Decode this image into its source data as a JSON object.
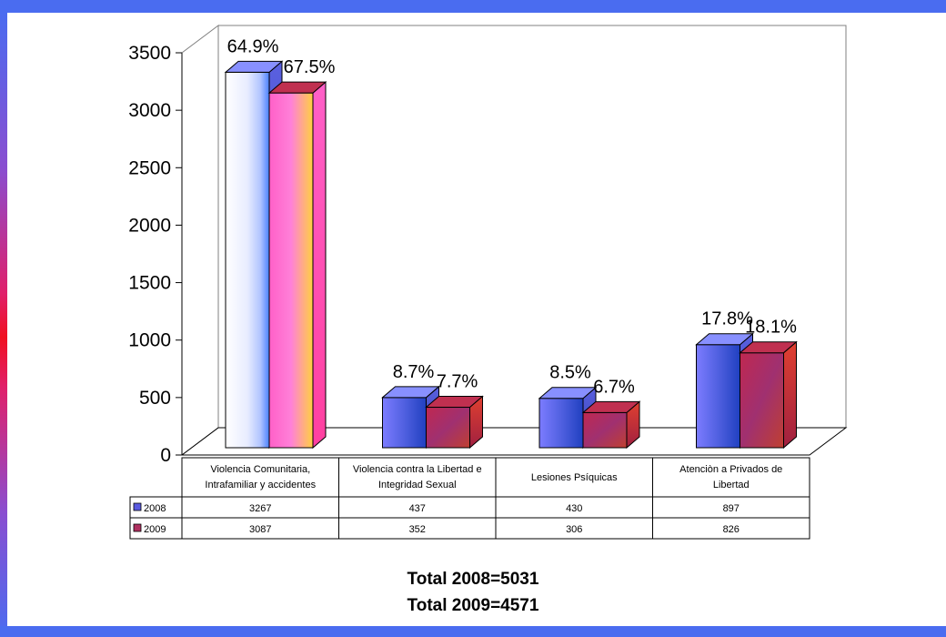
{
  "chart_data": {
    "type": "bar",
    "categories": [
      [
        "Violencia Comunitaria,",
        "Intrafamiliar y accidentes"
      ],
      [
        "Violencia contra la Libertad e",
        "Integridad Sexual"
      ],
      [
        "Lesiones Psíquicas"
      ],
      [
        "Atenciòn a Privados de",
        "Libertad"
      ]
    ],
    "series": [
      {
        "name": "2008",
        "values": [
          3267,
          437,
          430,
          897
        ],
        "value_labels": [
          "3267",
          "437",
          "430",
          "897"
        ],
        "pct_labels": [
          "64.9%",
          "8.7%",
          "8.5%",
          "17.8%"
        ],
        "color": "#5a5ae0"
      },
      {
        "name": "2009",
        "values": [
          3087,
          352,
          306,
          826
        ],
        "value_labels": [
          "3087",
          "352",
          "306",
          "826"
        ],
        "pct_labels": [
          "67.5%",
          "7.7%",
          "6.7%",
          "18.1%"
        ],
        "color": "#b03060"
      }
    ],
    "y_ticks": [
      "0",
      "500",
      "1000",
      "1500",
      "2000",
      "2500",
      "3000",
      "3500"
    ],
    "ylim": [
      0,
      3500
    ],
    "legend": "data-table"
  },
  "totals": [
    "Total 2008=5031",
    "Total 2009=4571"
  ]
}
